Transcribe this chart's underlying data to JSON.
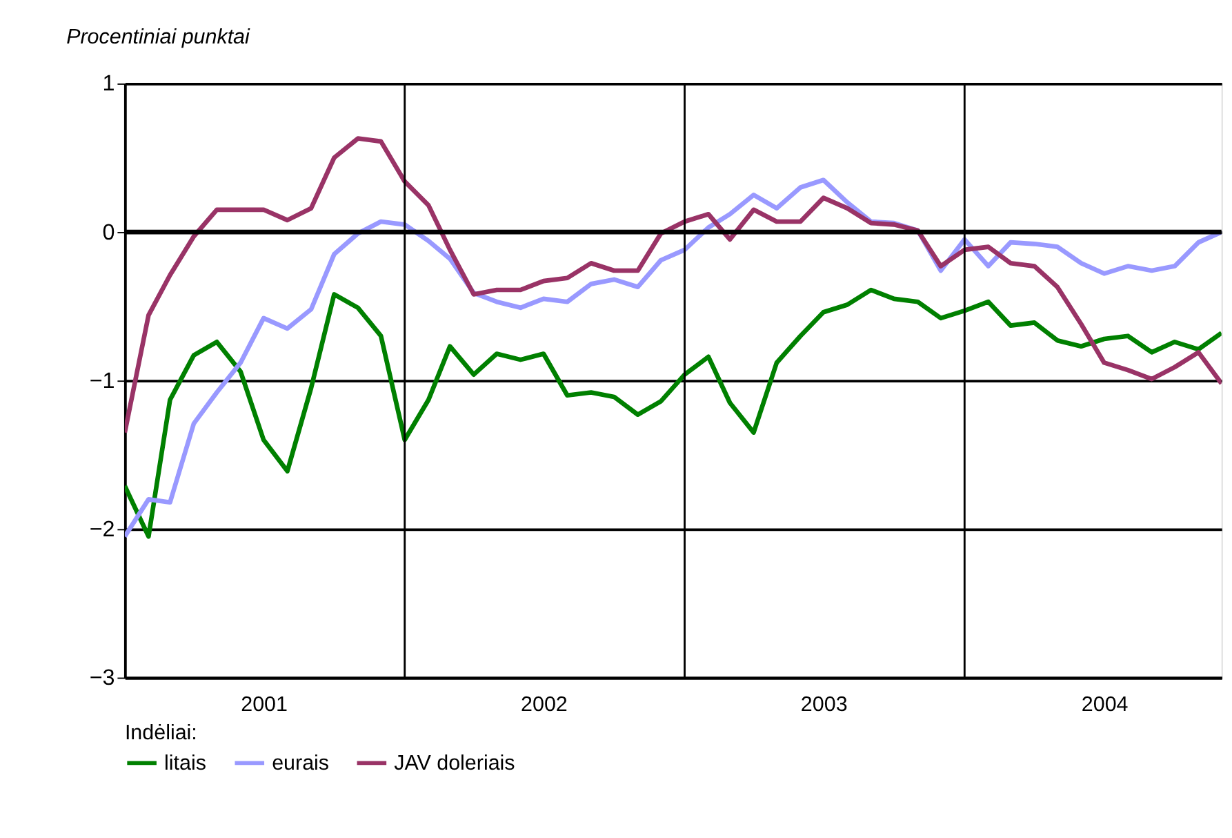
{
  "chart_data": {
    "type": "line",
    "ylabel": "Procentiniai punktai",
    "legend_title": "Indėliai:",
    "x": [
      "2001-01",
      "2001-02",
      "2001-03",
      "2001-04",
      "2001-05",
      "2001-06",
      "2001-07",
      "2001-08",
      "2001-09",
      "2001-10",
      "2001-11",
      "2001-12",
      "2002-01",
      "2002-02",
      "2002-03",
      "2002-04",
      "2002-05",
      "2002-06",
      "2002-07",
      "2002-08",
      "2002-09",
      "2002-10",
      "2002-11",
      "2002-12",
      "2003-01",
      "2003-02",
      "2003-03",
      "2003-04",
      "2003-05",
      "2003-06",
      "2003-07",
      "2003-08",
      "2003-09",
      "2003-10",
      "2003-11",
      "2003-12",
      "2004-01",
      "2004-02",
      "2004-03",
      "2004-04",
      "2004-05",
      "2004-06",
      "2004-07",
      "2004-08",
      "2004-09",
      "2004-10",
      "2004-11",
      "2004-12"
    ],
    "series": [
      {
        "name": "litais",
        "color": "#008000",
        "values": [
          -1.71,
          -2.05,
          -1.13,
          -0.83,
          -0.74,
          -0.94,
          -1.4,
          -1.61,
          -1.05,
          -0.42,
          -0.51,
          -0.7,
          -1.4,
          -1.13,
          -0.77,
          -0.96,
          -0.82,
          -0.86,
          -0.82,
          -1.1,
          -1.08,
          -1.11,
          -1.23,
          -1.14,
          -0.96,
          -0.84,
          -1.15,
          -1.35,
          -0.88,
          -0.7,
          -0.54,
          -0.49,
          -0.39,
          -0.45,
          -0.47,
          -0.58,
          -0.53,
          -0.47,
          -0.63,
          -0.61,
          -0.73,
          -0.77,
          -0.72,
          -0.7,
          -0.81,
          -0.74,
          -0.79,
          -0.68
        ]
      },
      {
        "name": "eurais",
        "color": "#9999ff",
        "values": [
          -2.05,
          -1.8,
          -1.82,
          -1.29,
          -1.08,
          -0.88,
          -0.58,
          -0.65,
          -0.52,
          -0.15,
          -0.01,
          0.07,
          0.05,
          -0.06,
          -0.18,
          -0.41,
          -0.47,
          -0.51,
          -0.45,
          -0.47,
          -0.35,
          -0.32,
          -0.37,
          -0.19,
          -0.12,
          0.03,
          0.12,
          0.25,
          0.16,
          0.3,
          0.35,
          0.2,
          0.07,
          0.06,
          0.01,
          -0.26,
          -0.05,
          -0.23,
          -0.07,
          -0.08,
          -0.1,
          -0.21,
          -0.28,
          -0.23,
          -0.26,
          -0.23,
          -0.07,
          0.0
        ]
      },
      {
        "name": "JAV doleriais",
        "color": "#993366",
        "values": [
          -1.35,
          -0.56,
          -0.29,
          -0.03,
          0.15,
          0.15,
          0.15,
          0.08,
          0.16,
          0.5,
          0.63,
          0.61,
          0.34,
          0.18,
          -0.12,
          -0.42,
          -0.39,
          -0.39,
          -0.33,
          -0.31,
          -0.21,
          -0.26,
          -0.26,
          -0.01,
          0.07,
          0.12,
          -0.05,
          0.15,
          0.07,
          0.07,
          0.23,
          0.16,
          0.06,
          0.05,
          0.01,
          -0.23,
          -0.12,
          -0.1,
          -0.21,
          -0.23,
          -0.37,
          -0.62,
          -0.88,
          -0.93,
          -0.99,
          -0.91,
          -0.81,
          -1.02
        ]
      }
    ],
    "xlim": [
      "2001-01",
      "2004-12"
    ],
    "xticks": [
      {
        "value": "2001-07",
        "label": "2001"
      },
      {
        "value": "2002-07",
        "label": "2002"
      },
      {
        "value": "2003-07",
        "label": "2003"
      },
      {
        "value": "2004-07",
        "label": "2004"
      }
    ],
    "ylim": [
      -3,
      1
    ],
    "yticks": [
      {
        "value": -3,
        "label": "−3"
      },
      {
        "value": -2,
        "label": "−2"
      },
      {
        "value": -1,
        "label": "−1"
      },
      0,
      1
    ],
    "grid": "y",
    "ref_lines": [
      {
        "axis": "y",
        "value": 0
      },
      {
        "axis": "x",
        "value": "2002-01"
      },
      {
        "axis": "x",
        "value": "2003-01"
      },
      {
        "axis": "x",
        "value": "2004-01"
      }
    ],
    "legend": "bottom",
    "line_style": "solid"
  }
}
